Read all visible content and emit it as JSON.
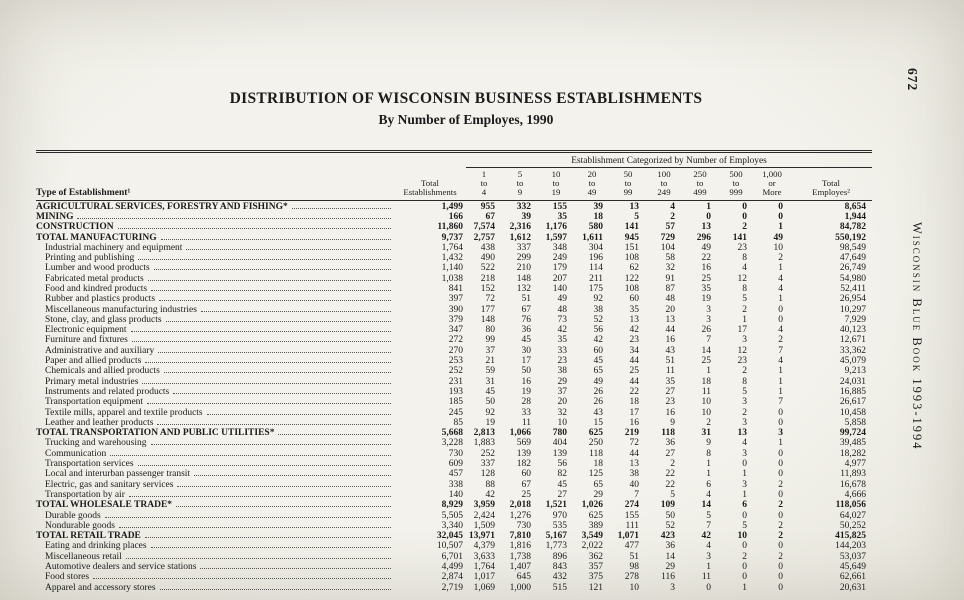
{
  "page": {
    "folio": "672",
    "spine_text": "Wisconsin Blue Book 1993-1994",
    "title_line1": "DISTRIBUTION OF WISCONSIN BUSINESS ESTABLISHMENTS",
    "title_line2": "By Number of Employes, 1990"
  },
  "table": {
    "span_header": "Establishment Categorized by Number of Employes",
    "type_col_header": "Type of Establishment¹",
    "total_establishments_header": [
      "Total",
      "Establishments"
    ],
    "range_headers": [
      [
        "1",
        "to",
        "4"
      ],
      [
        "5",
        "to",
        "9"
      ],
      [
        "10",
        "to",
        "19"
      ],
      [
        "20",
        "to",
        "49"
      ],
      [
        "50",
        "to",
        "99"
      ],
      [
        "100",
        "to",
        "249"
      ],
      [
        "250",
        "to",
        "499"
      ],
      [
        "500",
        "to",
        "999"
      ],
      [
        "1,000",
        "or",
        "More"
      ]
    ],
    "total_employes_header": [
      "Total",
      "Employes²"
    ],
    "rows": [
      {
        "label": "AGRICULTURAL SERVICES, FORESTRY AND FISHING*",
        "level": "major",
        "values": [
          "1,499",
          "955",
          "332",
          "155",
          "39",
          "13",
          "4",
          "1",
          "0",
          "0",
          "8,654"
        ]
      },
      {
        "label": "MINING",
        "level": "major",
        "values": [
          "166",
          "67",
          "39",
          "35",
          "18",
          "5",
          "2",
          "0",
          "0",
          "0",
          "1,944"
        ]
      },
      {
        "label": "CONSTRUCTION",
        "level": "major",
        "values": [
          "11,860",
          "7,574",
          "2,316",
          "1,176",
          "580",
          "141",
          "57",
          "13",
          "2",
          "1",
          "84,782"
        ]
      },
      {
        "label": "TOTAL MANUFACTURING",
        "level": "major",
        "values": [
          "9,737",
          "2,757",
          "1,612",
          "1,597",
          "1,611",
          "945",
          "729",
          "296",
          "141",
          "49",
          "550,192"
        ]
      },
      {
        "label": "Industrial machinery and equipment",
        "level": "sub",
        "values": [
          "1,764",
          "438",
          "337",
          "348",
          "304",
          "151",
          "104",
          "49",
          "23",
          "10",
          "98,549"
        ]
      },
      {
        "label": "Printing and publishing",
        "level": "sub",
        "values": [
          "1,432",
          "490",
          "299",
          "249",
          "196",
          "108",
          "58",
          "22",
          "8",
          "2",
          "47,649"
        ]
      },
      {
        "label": "Lumber and wood products",
        "level": "sub",
        "values": [
          "1,140",
          "522",
          "210",
          "179",
          "114",
          "62",
          "32",
          "16",
          "4",
          "1",
          "26,749"
        ]
      },
      {
        "label": "Fabricated metal products",
        "level": "sub",
        "values": [
          "1,038",
          "218",
          "148",
          "207",
          "211",
          "122",
          "91",
          "25",
          "12",
          "4",
          "54,980"
        ]
      },
      {
        "label": "Food and kindred products",
        "level": "sub",
        "values": [
          "841",
          "152",
          "132",
          "140",
          "175",
          "108",
          "87",
          "35",
          "8",
          "4",
          "52,411"
        ]
      },
      {
        "label": "Rubber and plastics products",
        "level": "sub",
        "values": [
          "397",
          "72",
          "51",
          "49",
          "92",
          "60",
          "48",
          "19",
          "5",
          "1",
          "26,954"
        ]
      },
      {
        "label": "Miscellaneous manufacturing industries",
        "level": "sub",
        "values": [
          "390",
          "177",
          "67",
          "48",
          "38",
          "35",
          "20",
          "3",
          "2",
          "0",
          "10,297"
        ]
      },
      {
        "label": "Stone, clay, and glass products",
        "level": "sub",
        "values": [
          "379",
          "148",
          "76",
          "73",
          "52",
          "13",
          "13",
          "3",
          "1",
          "0",
          "7,929"
        ]
      },
      {
        "label": "Electronic equipment",
        "level": "sub",
        "values": [
          "347",
          "80",
          "36",
          "42",
          "56",
          "42",
          "44",
          "26",
          "17",
          "4",
          "40,123"
        ]
      },
      {
        "label": "Furniture and fixtures",
        "level": "sub",
        "values": [
          "272",
          "99",
          "45",
          "35",
          "42",
          "23",
          "16",
          "7",
          "3",
          "2",
          "12,671"
        ]
      },
      {
        "label": "Administrative and auxiliary",
        "level": "sub",
        "values": [
          "270",
          "37",
          "30",
          "33",
          "60",
          "34",
          "43",
          "14",
          "12",
          "7",
          "33,362"
        ]
      },
      {
        "label": "Paper and allied products",
        "level": "sub",
        "values": [
          "253",
          "21",
          "17",
          "23",
          "45",
          "44",
          "51",
          "25",
          "23",
          "4",
          "45,079"
        ]
      },
      {
        "label": "Chemicals and allied products",
        "level": "sub",
        "values": [
          "252",
          "59",
          "50",
          "38",
          "65",
          "25",
          "11",
          "1",
          "2",
          "1",
          "9,213"
        ]
      },
      {
        "label": "Primary metal industries",
        "level": "sub",
        "values": [
          "231",
          "31",
          "16",
          "29",
          "49",
          "44",
          "35",
          "18",
          "8",
          "1",
          "24,031"
        ]
      },
      {
        "label": "Instruments and related products",
        "level": "sub",
        "values": [
          "193",
          "45",
          "19",
          "37",
          "26",
          "22",
          "27",
          "11",
          "5",
          "1",
          "16,885"
        ]
      },
      {
        "label": "Transportation equipment",
        "level": "sub",
        "values": [
          "185",
          "50",
          "28",
          "20",
          "26",
          "18",
          "23",
          "10",
          "3",
          "7",
          "26,617"
        ]
      },
      {
        "label": "Textile mills, apparel and textile products",
        "level": "sub",
        "values": [
          "245",
          "92",
          "33",
          "32",
          "43",
          "17",
          "16",
          "10",
          "2",
          "0",
          "10,458"
        ]
      },
      {
        "label": "Leather and leather products",
        "level": "sub",
        "values": [
          "85",
          "19",
          "11",
          "10",
          "15",
          "16",
          "9",
          "2",
          "3",
          "0",
          "5,858"
        ]
      },
      {
        "label": "TOTAL TRANSPORTATION AND PUBLIC UTILITIES*",
        "level": "major",
        "values": [
          "5,668",
          "2,813",
          "1,066",
          "780",
          "625",
          "219",
          "118",
          "31",
          "13",
          "3",
          "99,724"
        ]
      },
      {
        "label": "Trucking and warehousing",
        "level": "sub",
        "values": [
          "3,228",
          "1,883",
          "569",
          "404",
          "250",
          "72",
          "36",
          "9",
          "4",
          "1",
          "39,485"
        ]
      },
      {
        "label": "Communication",
        "level": "sub",
        "values": [
          "730",
          "252",
          "139",
          "139",
          "118",
          "44",
          "27",
          "8",
          "3",
          "0",
          "18,282"
        ]
      },
      {
        "label": "Transportation services",
        "level": "sub",
        "values": [
          "609",
          "337",
          "182",
          "56",
          "18",
          "13",
          "2",
          "1",
          "0",
          "0",
          "4,977"
        ]
      },
      {
        "label": "Local and interurban passenger transit",
        "level": "sub",
        "values": [
          "457",
          "128",
          "60",
          "82",
          "125",
          "38",
          "22",
          "1",
          "1",
          "0",
          "11,893"
        ]
      },
      {
        "label": "Electric, gas and sanitary services",
        "level": "sub",
        "values": [
          "338",
          "88",
          "67",
          "45",
          "65",
          "40",
          "22",
          "6",
          "3",
          "2",
          "16,678"
        ]
      },
      {
        "label": "Transportation by air",
        "level": "sub",
        "values": [
          "140",
          "42",
          "25",
          "27",
          "29",
          "7",
          "5",
          "4",
          "1",
          "0",
          "4,666"
        ]
      },
      {
        "label": "TOTAL WHOLESALE TRADE*",
        "level": "major",
        "values": [
          "8,929",
          "3,959",
          "2,018",
          "1,521",
          "1,026",
          "274",
          "109",
          "14",
          "6",
          "2",
          "118,056"
        ]
      },
      {
        "label": "Durable goods",
        "level": "sub",
        "values": [
          "5,505",
          "2,424",
          "1,276",
          "970",
          "625",
          "155",
          "50",
          "5",
          "0",
          "0",
          "64,027"
        ]
      },
      {
        "label": "Nondurable goods",
        "level": "sub",
        "values": [
          "3,340",
          "1,509",
          "730",
          "535",
          "389",
          "111",
          "52",
          "7",
          "5",
          "2",
          "50,252"
        ]
      },
      {
        "label": "TOTAL RETAIL TRADE",
        "level": "major",
        "values": [
          "32,045",
          "13,971",
          "7,810",
          "5,167",
          "3,549",
          "1,071",
          "423",
          "42",
          "10",
          "2",
          "415,825"
        ]
      },
      {
        "label": "Eating and drinking places",
        "level": "sub",
        "values": [
          "10,507",
          "4,379",
          "1,816",
          "1,773",
          "2,022",
          "477",
          "36",
          "4",
          "0",
          "0",
          "144,203"
        ]
      },
      {
        "label": "Miscellaneous retail",
        "level": "sub",
        "values": [
          "6,701",
          "3,633",
          "1,738",
          "896",
          "362",
          "51",
          "14",
          "3",
          "2",
          "2",
          "53,037"
        ]
      },
      {
        "label": "Automotive dealers and service stations",
        "level": "sub",
        "values": [
          "4,499",
          "1,764",
          "1,407",
          "843",
          "357",
          "98",
          "29",
          "1",
          "0",
          "0",
          "45,649"
        ]
      },
      {
        "label": "Food stores",
        "level": "sub",
        "values": [
          "2,874",
          "1,017",
          "645",
          "432",
          "375",
          "278",
          "116",
          "11",
          "0",
          "0",
          "62,661"
        ]
      },
      {
        "label": "Apparel and accessory stores",
        "level": "sub",
        "values": [
          "2,719",
          "1,069",
          "1,000",
          "515",
          "121",
          "10",
          "3",
          "0",
          "1",
          "0",
          "20,631"
        ]
      }
    ]
  }
}
